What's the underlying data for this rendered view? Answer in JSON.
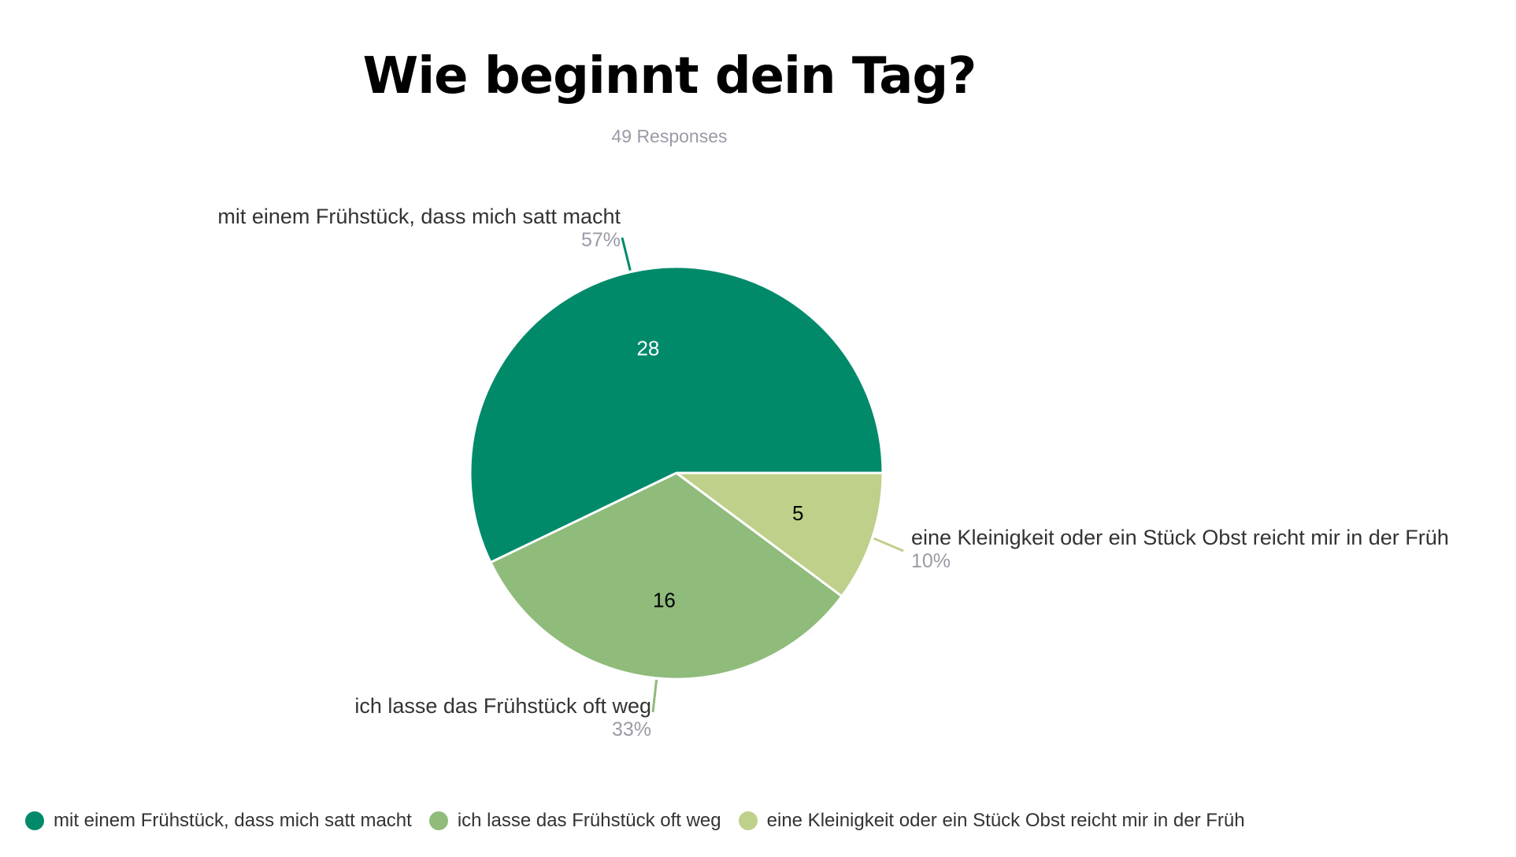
{
  "chart_data": {
    "type": "pie",
    "title": "Wie beginnt dein Tag?",
    "subtitle": "49 Responses",
    "total": 49,
    "slices": [
      {
        "label": "mit einem Frühstück, dass mich satt macht",
        "value": 28,
        "percent": "57%",
        "color": "#008a6a",
        "value_text_color": "#ffffff"
      },
      {
        "label": "ich lasse das Frühstück oft weg",
        "value": 16,
        "percent": "33%",
        "color": "#8fbb7b",
        "value_text_color": "#000000"
      },
      {
        "label": "eine Kleinigkeit oder ein Stück Obst reicht mir in der Früh",
        "value": 5,
        "percent": "10%",
        "color": "#bfd08a",
        "value_text_color": "#000000"
      }
    ],
    "legend_position": "bottom-left",
    "start": "3 o'clock",
    "direction": "counter-clockwise"
  }
}
